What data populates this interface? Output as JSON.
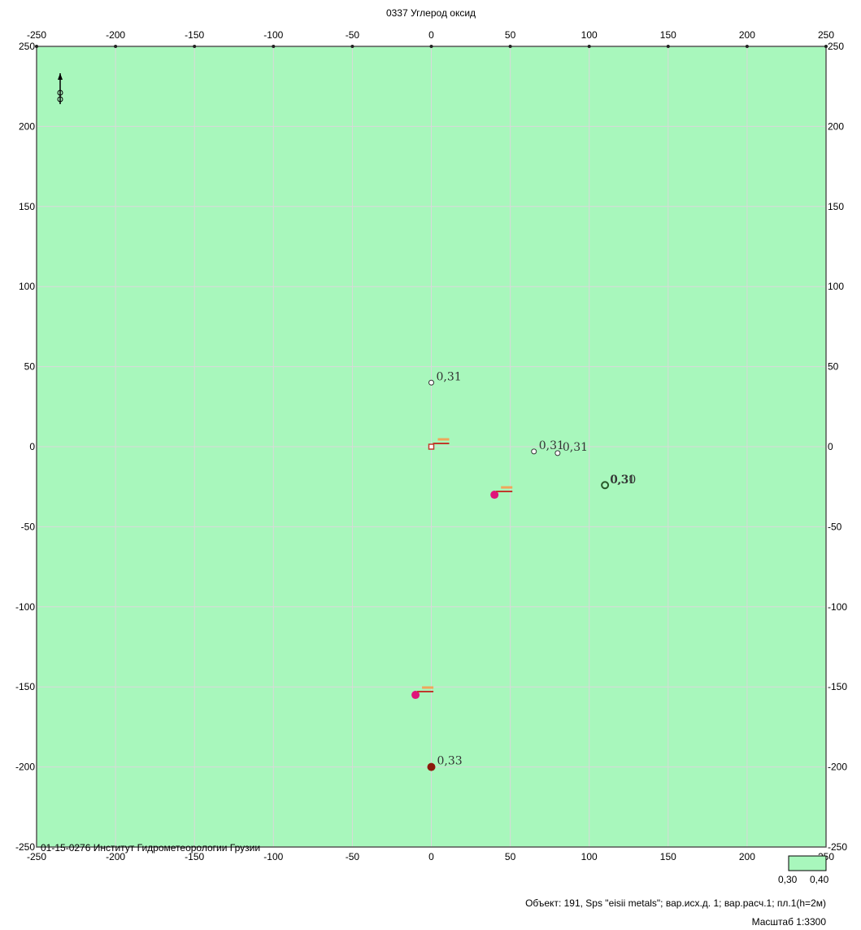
{
  "chart_data": {
    "type": "scatter",
    "title": "0337 Углерод оксид",
    "xlim": [
      -250,
      250
    ],
    "ylim": [
      -250,
      250
    ],
    "x_ticks": [
      -250,
      -200,
      -150,
      -100,
      -50,
      0,
      50,
      100,
      150,
      200,
      250
    ],
    "y_ticks": [
      250,
      200,
      150,
      100,
      50,
      0,
      -50,
      -100,
      -150,
      -200,
      -250
    ],
    "grid": true,
    "background_color": "#a8f7bc",
    "grid_color": "#d9d9d9",
    "points": [
      {
        "kind": "open-circle",
        "x": 0,
        "y": 40,
        "label": "0,31"
      },
      {
        "kind": "open-circle",
        "x": 65,
        "y": -3,
        "label": "0,31"
      },
      {
        "kind": "open-circle",
        "x": 80,
        "y": -4,
        "label": "0,31"
      },
      {
        "kind": "ring",
        "x": 110,
        "y": -24,
        "label": "0,31"
      },
      {
        "kind": "ring-overlay",
        "x": 110,
        "y": -24,
        "label": "0,30"
      },
      {
        "kind": "source-square",
        "x": 0,
        "y": 0,
        "label": ""
      },
      {
        "kind": "source-dot",
        "x": 40,
        "y": -30,
        "label": ""
      },
      {
        "kind": "source-dot",
        "x": -10,
        "y": -155,
        "label": ""
      },
      {
        "kind": "max-dot",
        "x": 0,
        "y": -200,
        "label": "0,33"
      }
    ],
    "legend": {
      "swatch_color": "#a8f7bc",
      "range_labels": [
        "0,30",
        "0,40"
      ]
    }
  },
  "credit": "01-15-0276 Институт Гидрометеорологии Грузии",
  "footer": {
    "object_line": "Объект: 191, Sps \"eisii metals\"; вар.исх.д. 1; вар.расч.1; пл.1(h=2м)",
    "scale_line": "Масштаб 1:3300"
  },
  "colors": {
    "source_pink": "#e0157a",
    "max_dot": "#8b1a0c",
    "arrow_red": "#c0392b",
    "arrow_orange": "#f0a65a"
  }
}
